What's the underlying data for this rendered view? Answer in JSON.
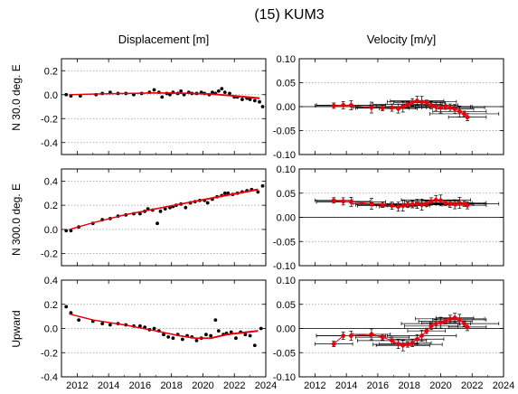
{
  "title": "(15) KUM3",
  "columns": [
    "Displacement [m]",
    "Velocity [m/y]"
  ],
  "rows": [
    "N 30.0 deg. E",
    "N 300.0 deg. E",
    "Upward"
  ],
  "x_ticks": [
    "2012",
    "2014",
    "2016",
    "2018",
    "2020",
    "2022",
    "2024"
  ],
  "colors": {
    "points": "#000000",
    "fit": "#e8000b",
    "grid": "#9a9a9a"
  },
  "chart_data": [
    {
      "type": "scatter",
      "name": "displacement-n30e",
      "title": "Displacement [m]",
      "ylabel": "N 30.0 deg. E",
      "xlim": [
        2011,
        2024
      ],
      "ylim": [
        -0.5,
        0.3
      ],
      "y_ticks": [
        "0.2",
        "0.0",
        "-0.2",
        "-0.4"
      ],
      "y_tick_values": [
        0.2,
        0.0,
        -0.2,
        -0.4
      ],
      "points": [
        [
          2011.3,
          0.0
        ],
        [
          2011.6,
          -0.01
        ],
        [
          2012.2,
          -0.01
        ],
        [
          2013.2,
          0.0
        ],
        [
          2013.6,
          0.01
        ],
        [
          2014.1,
          0.02
        ],
        [
          2014.6,
          0.01
        ],
        [
          2015.1,
          0.01
        ],
        [
          2015.6,
          0.0
        ],
        [
          2016.1,
          0.01
        ],
        [
          2016.6,
          0.02
        ],
        [
          2016.9,
          0.04
        ],
        [
          2017.2,
          0.02
        ],
        [
          2017.4,
          -0.02
        ],
        [
          2017.7,
          0.01
        ],
        [
          2017.9,
          0.0
        ],
        [
          2018.1,
          0.02
        ],
        [
          2018.4,
          0.01
        ],
        [
          2018.6,
          0.03
        ],
        [
          2018.8,
          0.0
        ],
        [
          2019.1,
          0.02
        ],
        [
          2019.3,
          0.01
        ],
        [
          2019.6,
          0.01
        ],
        [
          2019.9,
          0.02
        ],
        [
          2020.1,
          0.01
        ],
        [
          2020.4,
          0.0
        ],
        [
          2020.6,
          0.02
        ],
        [
          2020.8,
          0.01
        ],
        [
          2021.0,
          0.03
        ],
        [
          2021.2,
          0.05
        ],
        [
          2021.4,
          0.02
        ],
        [
          2021.7,
          0.01
        ],
        [
          2022.0,
          -0.02
        ],
        [
          2022.2,
          -0.02
        ],
        [
          2022.5,
          -0.04
        ],
        [
          2022.8,
          -0.03
        ],
        [
          2023.0,
          -0.04
        ],
        [
          2023.3,
          -0.05
        ],
        [
          2023.6,
          -0.06
        ],
        [
          2023.8,
          -0.1
        ]
      ],
      "fit": [
        [
          2011.5,
          0.0
        ],
        [
          2013,
          0.005
        ],
        [
          2015,
          0.01
        ],
        [
          2017,
          0.015
        ],
        [
          2019,
          0.012
        ],
        [
          2020.5,
          0.005
        ],
        [
          2022,
          -0.01
        ],
        [
          2023.6,
          -0.03
        ]
      ]
    },
    {
      "type": "scatter",
      "name": "velocity-n30e",
      "title": "Velocity [m/y]",
      "ylabel": "",
      "xlim": [
        2011,
        2024
      ],
      "ylim": [
        -0.1,
        0.1
      ],
      "y_ticks": [
        "0.10",
        "0.05",
        "0.00",
        "-0.05",
        "-0.10"
      ],
      "y_tick_values": [
        0.1,
        0.05,
        0.0,
        -0.05,
        -0.1
      ],
      "zero_line": true,
      "points": [
        [
          2013.2,
          0.002
        ],
        [
          2013.8,
          0.003
        ],
        [
          2014.3,
          0.003
        ],
        [
          2015.6,
          -0.002
        ],
        [
          2016.3,
          -0.003
        ],
        [
          2016.9,
          -0.002
        ],
        [
          2017.3,
          -0.004
        ],
        [
          2017.6,
          0.0
        ],
        [
          2017.9,
          0.005
        ],
        [
          2018.2,
          0.009
        ],
        [
          2018.5,
          0.012
        ],
        [
          2018.8,
          0.01
        ],
        [
          2019.1,
          0.008
        ],
        [
          2019.4,
          0.003
        ],
        [
          2019.7,
          0.0
        ],
        [
          2020.0,
          -0.002
        ],
        [
          2020.3,
          0.0
        ],
        [
          2020.6,
          -0.002
        ],
        [
          2020.9,
          -0.005
        ],
        [
          2021.2,
          -0.01
        ],
        [
          2021.5,
          -0.015
        ],
        [
          2021.7,
          -0.022
        ]
      ]
    },
    {
      "type": "scatter",
      "name": "displacement-n300e",
      "title": "",
      "ylabel": "N 300.0 deg. E",
      "xlim": [
        2011,
        2024
      ],
      "ylim": [
        -0.3,
        0.5
      ],
      "y_ticks": [
        "0.4",
        "0.2",
        "0.0",
        "-0.2"
      ],
      "y_tick_values": [
        0.4,
        0.2,
        0.0,
        -0.2
      ],
      "points": [
        [
          2011.3,
          -0.01
        ],
        [
          2011.6,
          -0.01
        ],
        [
          2012.1,
          0.02
        ],
        [
          2013.0,
          0.05
        ],
        [
          2013.6,
          0.08
        ],
        [
          2014.1,
          0.09
        ],
        [
          2014.6,
          0.11
        ],
        [
          2015.1,
          0.12
        ],
        [
          2015.6,
          0.13
        ],
        [
          2016.0,
          0.13
        ],
        [
          2016.3,
          0.15
        ],
        [
          2016.5,
          0.17
        ],
        [
          2016.8,
          0.16
        ],
        [
          2017.1,
          0.05
        ],
        [
          2017.3,
          0.15
        ],
        [
          2017.6,
          0.17
        ],
        [
          2017.9,
          0.18
        ],
        [
          2018.1,
          0.19
        ],
        [
          2018.3,
          0.2
        ],
        [
          2018.6,
          0.21
        ],
        [
          2018.9,
          0.18
        ],
        [
          2019.2,
          0.22
        ],
        [
          2019.5,
          0.23
        ],
        [
          2019.8,
          0.24
        ],
        [
          2020.1,
          0.24
        ],
        [
          2020.3,
          0.22
        ],
        [
          2020.6,
          0.25
        ],
        [
          2020.9,
          0.27
        ],
        [
          2021.2,
          0.28
        ],
        [
          2021.4,
          0.3
        ],
        [
          2021.6,
          0.3
        ],
        [
          2021.9,
          0.29
        ],
        [
          2022.2,
          0.3
        ],
        [
          2022.5,
          0.31
        ],
        [
          2022.8,
          0.32
        ],
        [
          2023.1,
          0.33
        ],
        [
          2023.5,
          0.31
        ],
        [
          2023.8,
          0.36
        ]
      ],
      "fit": [
        [
          2011.5,
          0.0
        ],
        [
          2013,
          0.055
        ],
        [
          2015,
          0.12
        ],
        [
          2017,
          0.17
        ],
        [
          2019,
          0.22
        ],
        [
          2021,
          0.27
        ],
        [
          2023.5,
          0.33
        ]
      ]
    },
    {
      "type": "scatter",
      "name": "velocity-n300e",
      "title": "",
      "ylabel": "",
      "xlim": [
        2011,
        2024
      ],
      "ylim": [
        -0.1,
        0.1
      ],
      "y_ticks": [
        "0.10",
        "0.05",
        "0.00",
        "-0.05",
        "-0.10"
      ],
      "y_tick_values": [
        0.1,
        0.05,
        0.0,
        -0.05,
        -0.1
      ],
      "zero_line": true,
      "points": [
        [
          2013.2,
          0.035
        ],
        [
          2013.8,
          0.033
        ],
        [
          2014.3,
          0.032
        ],
        [
          2015.6,
          0.028
        ],
        [
          2016.3,
          0.026
        ],
        [
          2016.9,
          0.024
        ],
        [
          2017.3,
          0.022
        ],
        [
          2017.6,
          0.024
        ],
        [
          2017.9,
          0.026
        ],
        [
          2018.2,
          0.027
        ],
        [
          2018.5,
          0.028
        ],
        [
          2018.8,
          0.026
        ],
        [
          2019.1,
          0.028
        ],
        [
          2019.4,
          0.033
        ],
        [
          2019.7,
          0.036
        ],
        [
          2020.0,
          0.035
        ],
        [
          2020.3,
          0.03
        ],
        [
          2020.6,
          0.028
        ],
        [
          2020.9,
          0.027
        ],
        [
          2021.2,
          0.03
        ],
        [
          2021.5,
          0.028
        ],
        [
          2021.7,
          0.025
        ]
      ]
    },
    {
      "type": "scatter",
      "name": "displacement-upward",
      "title": "",
      "ylabel": "Upward",
      "xlim": [
        2011,
        2024
      ],
      "ylim": [
        -0.4,
        0.4
      ],
      "y_ticks": [
        "0.4",
        "0.2",
        "0.0",
        "-0.2",
        "-0.4"
      ],
      "y_tick_values": [
        0.4,
        0.2,
        0.0,
        -0.2,
        -0.4
      ],
      "points": [
        [
          2011.3,
          0.18
        ],
        [
          2011.6,
          0.13
        ],
        [
          2012.1,
          0.07
        ],
        [
          2013.0,
          0.06
        ],
        [
          2013.6,
          0.04
        ],
        [
          2014.1,
          0.03
        ],
        [
          2014.6,
          0.04
        ],
        [
          2015.1,
          0.03
        ],
        [
          2015.6,
          0.02
        ],
        [
          2016.0,
          0.02
        ],
        [
          2016.3,
          0.01
        ],
        [
          2016.6,
          -0.01
        ],
        [
          2016.9,
          0.0
        ],
        [
          2017.2,
          -0.02
        ],
        [
          2017.5,
          -0.05
        ],
        [
          2017.8,
          -0.07
        ],
        [
          2018.1,
          -0.08
        ],
        [
          2018.4,
          -0.05
        ],
        [
          2018.7,
          -0.09
        ],
        [
          2019.0,
          -0.06
        ],
        [
          2019.3,
          -0.07
        ],
        [
          2019.6,
          -0.1
        ],
        [
          2019.9,
          -0.08
        ],
        [
          2020.2,
          -0.05
        ],
        [
          2020.5,
          -0.06
        ],
        [
          2020.8,
          0.07
        ],
        [
          2021.0,
          -0.02
        ],
        [
          2021.3,
          -0.05
        ],
        [
          2021.5,
          -0.04
        ],
        [
          2021.8,
          -0.03
        ],
        [
          2022.1,
          -0.08
        ],
        [
          2022.4,
          -0.03
        ],
        [
          2022.7,
          -0.05
        ],
        [
          2023.0,
          -0.06
        ],
        [
          2023.3,
          -0.14
        ],
        [
          2023.7,
          0.0
        ]
      ],
      "fit": [
        [
          2011.5,
          0.12
        ],
        [
          2013,
          0.07
        ],
        [
          2015,
          0.03
        ],
        [
          2017,
          -0.02
        ],
        [
          2018.5,
          -0.06
        ],
        [
          2019.5,
          -0.08
        ],
        [
          2020.5,
          -0.08
        ],
        [
          2021.5,
          -0.05
        ],
        [
          2023.5,
          -0.02
        ]
      ]
    },
    {
      "type": "scatter",
      "name": "velocity-upward",
      "title": "",
      "ylabel": "",
      "xlim": [
        2011,
        2024
      ],
      "ylim": [
        -0.1,
        0.1
      ],
      "y_ticks": [
        "0.10",
        "0.05",
        "0.00",
        "-0.05",
        "-0.10"
      ],
      "y_tick_values": [
        0.1,
        0.05,
        0.0,
        -0.05,
        -0.1
      ],
      "zero_line": true,
      "points": [
        [
          2013.2,
          -0.032
        ],
        [
          2013.8,
          -0.015
        ],
        [
          2014.3,
          -0.015
        ],
        [
          2015.6,
          -0.012
        ],
        [
          2016.3,
          -0.018
        ],
        [
          2016.9,
          -0.025
        ],
        [
          2017.3,
          -0.032
        ],
        [
          2017.6,
          -0.035
        ],
        [
          2017.9,
          -0.033
        ],
        [
          2018.2,
          -0.03
        ],
        [
          2018.5,
          -0.022
        ],
        [
          2018.8,
          -0.015
        ],
        [
          2019.1,
          -0.005
        ],
        [
          2019.4,
          0.005
        ],
        [
          2019.7,
          0.01
        ],
        [
          2020.0,
          0.012
        ],
        [
          2020.3,
          0.015
        ],
        [
          2020.6,
          0.02
        ],
        [
          2020.9,
          0.022
        ],
        [
          2021.2,
          0.018
        ],
        [
          2021.5,
          0.01
        ],
        [
          2021.7,
          0.003
        ]
      ]
    }
  ]
}
